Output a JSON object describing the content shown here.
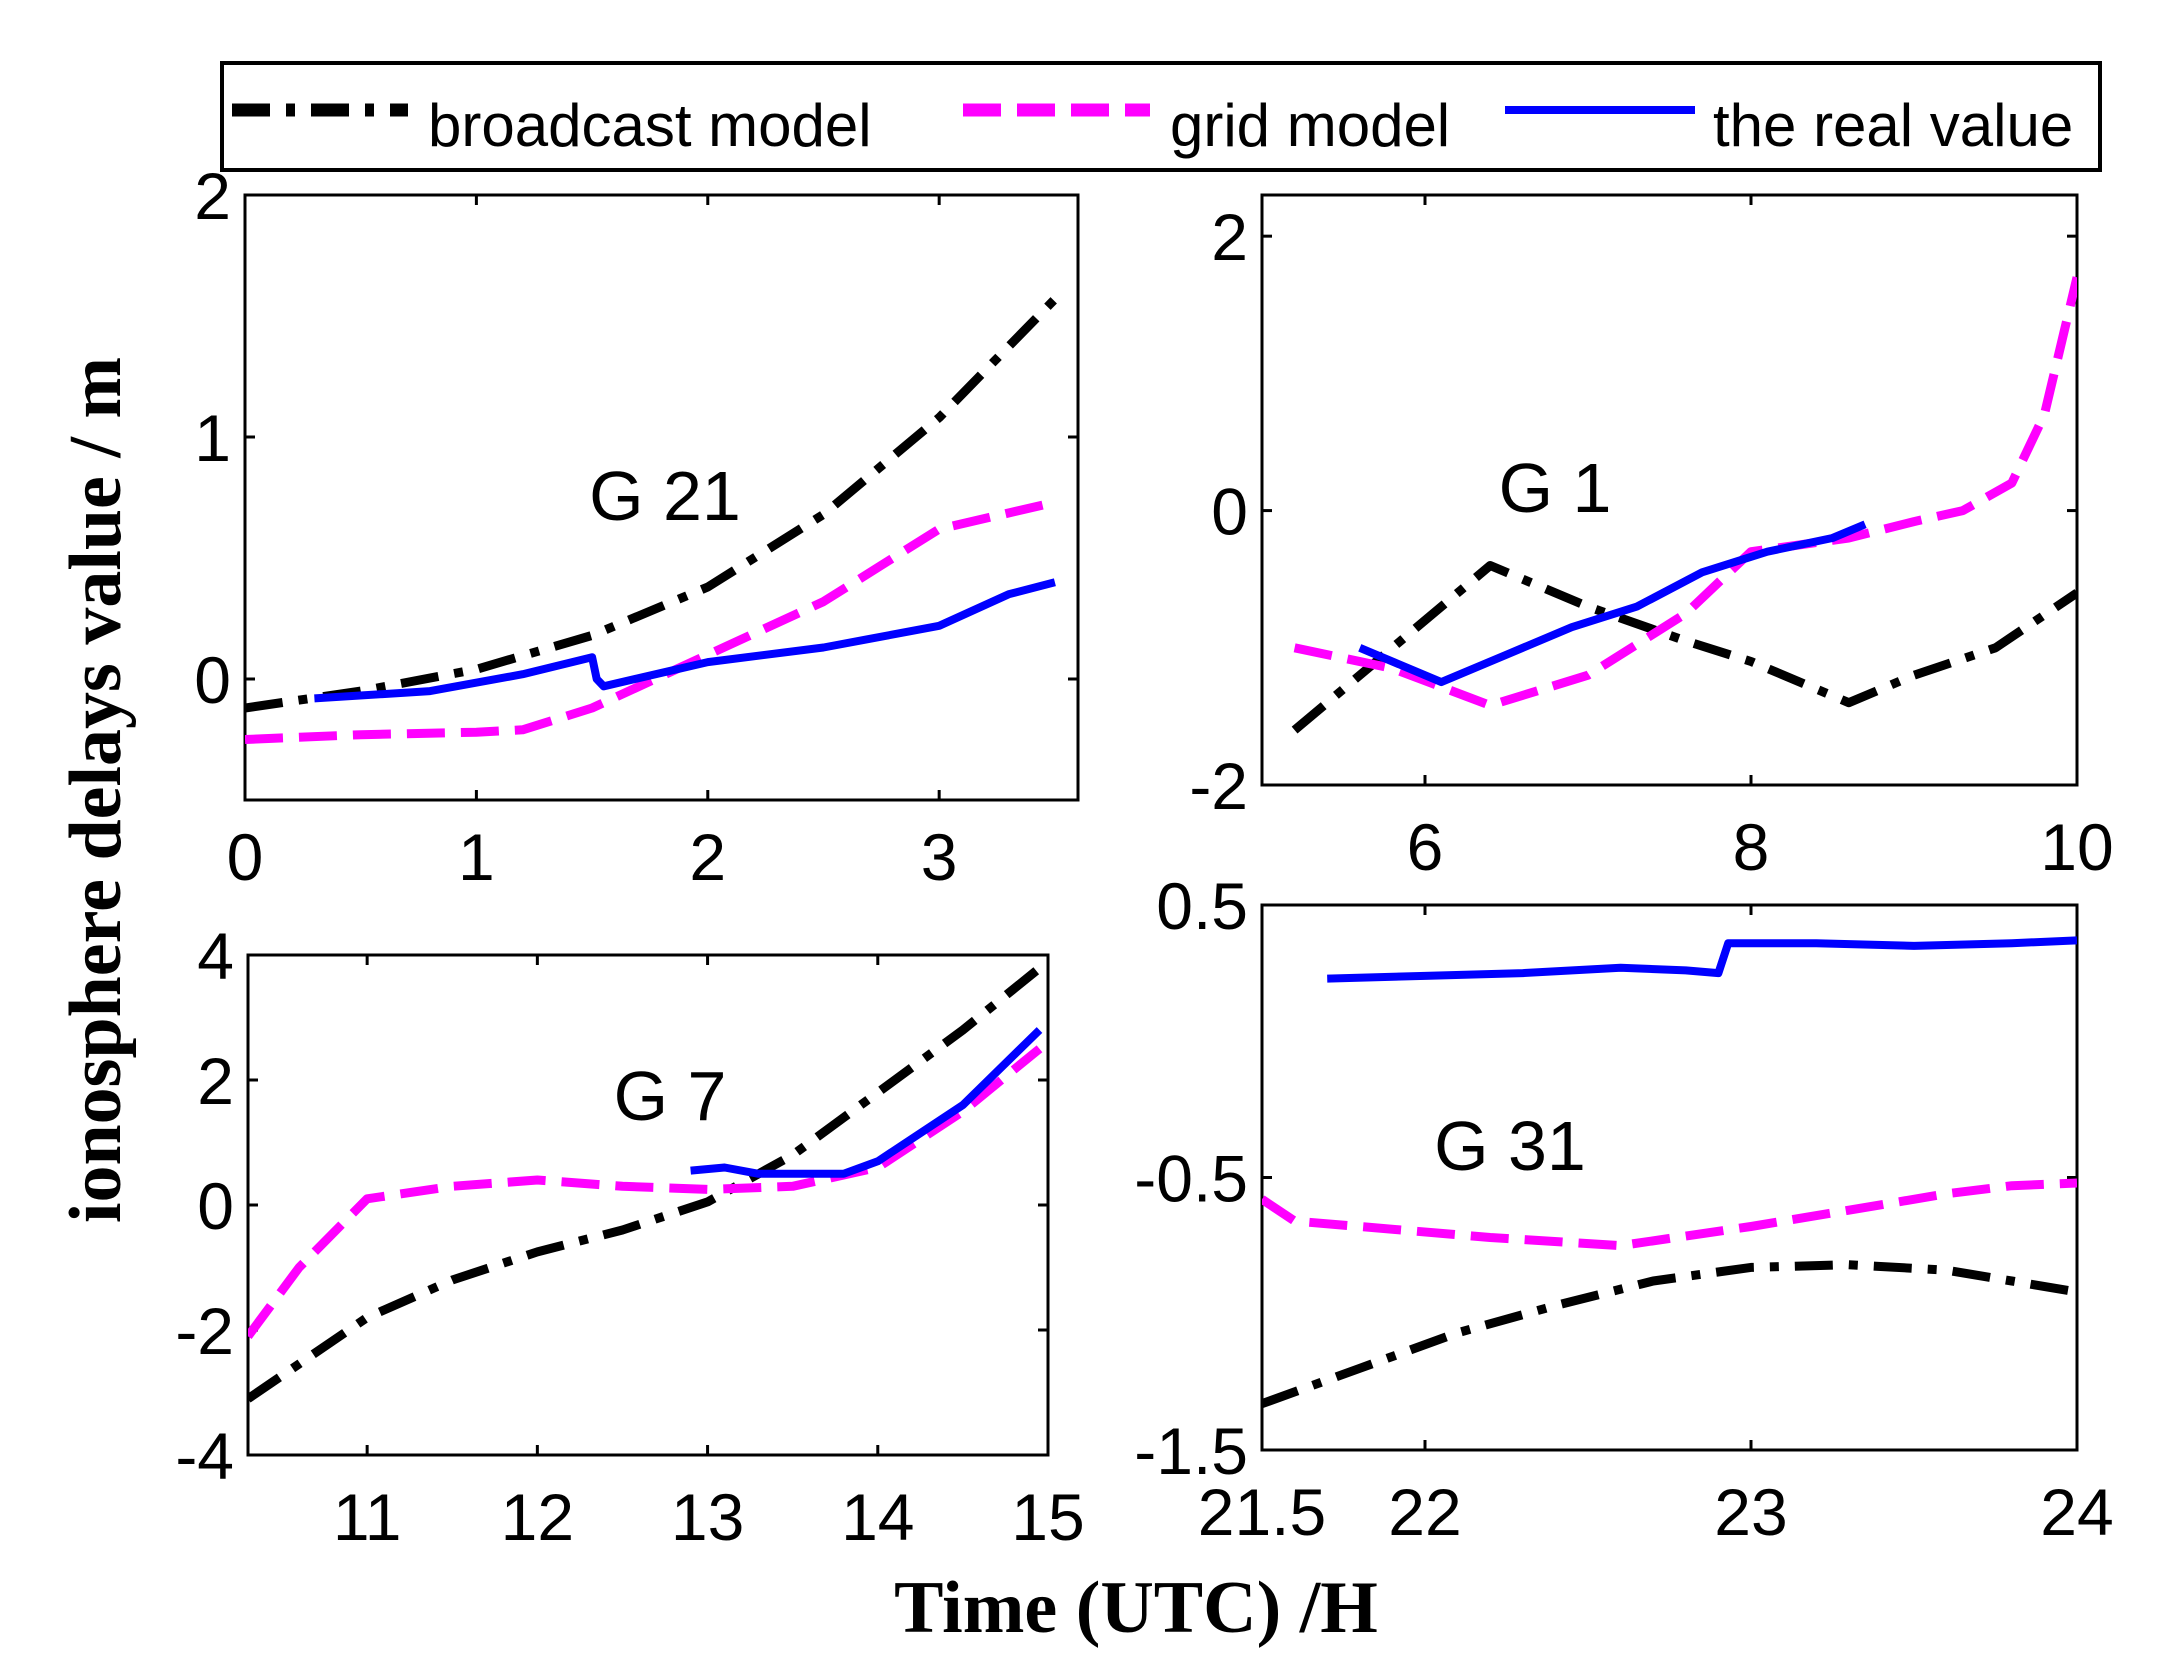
{
  "figure": {
    "ylabel": "ionosphere delays value / m",
    "xlabel": "Time (UTC) /H"
  },
  "legend": {
    "items": [
      {
        "label": "broadcast model",
        "color": "#000000",
        "style": "dashdot"
      },
      {
        "label": "grid model",
        "color": "#ff00ff",
        "style": "dashed"
      },
      {
        "label": "the real value",
        "color": "#0000ff",
        "style": "solid"
      }
    ]
  },
  "chart_data": [
    {
      "type": "line",
      "title": "G 21",
      "xlim": [
        0,
        3.6
      ],
      "ylim": [
        -0.5,
        2
      ],
      "xticks": [
        0,
        1,
        2,
        3
      ],
      "xtick_labels": [
        "0",
        "1",
        "2",
        "3"
      ],
      "yticks": [
        0,
        1,
        2
      ],
      "ytick_labels": [
        "0",
        "1",
        "2"
      ],
      "series": [
        {
          "name": "broadcast model",
          "color": "#000000",
          "style": "dashdot",
          "x": [
            0,
            0.5,
            1.0,
            1.5,
            2.0,
            2.5,
            3.0,
            3.5
          ],
          "y": [
            -0.12,
            -0.05,
            0.04,
            0.18,
            0.38,
            0.68,
            1.08,
            1.57
          ]
        },
        {
          "name": "grid model",
          "color": "#ff00ff",
          "style": "dashed",
          "x": [
            0,
            0.5,
            1.0,
            1.2,
            1.5,
            2.0,
            2.5,
            3.0,
            3.5
          ],
          "y": [
            -0.25,
            -0.23,
            -0.22,
            -0.21,
            -0.12,
            0.1,
            0.32,
            0.62,
            0.73
          ]
        },
        {
          "name": "the real value",
          "color": "#0000ff",
          "style": "solid",
          "x": [
            0.3,
            0.8,
            1.2,
            1.5,
            1.52,
            1.55,
            2.0,
            2.5,
            3.0,
            3.3,
            3.5
          ],
          "y": [
            -0.08,
            -0.05,
            0.02,
            0.09,
            0.0,
            -0.03,
            0.07,
            0.13,
            0.22,
            0.35,
            0.4
          ]
        }
      ]
    },
    {
      "type": "line",
      "title": "G 1",
      "xlim": [
        5,
        10
      ],
      "ylim": [
        -2,
        2.3
      ],
      "xticks": [
        6,
        8,
        10
      ],
      "xtick_labels": [
        "6",
        "8",
        "10"
      ],
      "yticks": [
        -2,
        0,
        2
      ],
      "ytick_labels": [
        "-2",
        "0",
        "2"
      ],
      "series": [
        {
          "name": "broadcast model",
          "color": "#000000",
          "style": "dashdot",
          "x": [
            5.2,
            6.4,
            7.0,
            7.6,
            8.0,
            8.6,
            9.0,
            9.5,
            10.0
          ],
          "y": [
            -1.6,
            -0.4,
            -0.7,
            -0.95,
            -1.1,
            -1.4,
            -1.2,
            -1.0,
            -0.6
          ]
        },
        {
          "name": "grid model",
          "color": "#ff00ff",
          "style": "dashed",
          "x": [
            5.2,
            5.8,
            6.4,
            7.0,
            7.6,
            8.0,
            8.6,
            9.0,
            9.3,
            9.6,
            9.8,
            10.0
          ],
          "y": [
            -1.0,
            -1.15,
            -1.42,
            -1.2,
            -0.75,
            -0.3,
            -0.2,
            -0.08,
            0.0,
            0.2,
            0.7,
            1.7
          ]
        },
        {
          "name": "the real value",
          "color": "#0000ff",
          "style": "solid",
          "x": [
            5.6,
            6.1,
            6.5,
            6.9,
            7.3,
            7.7,
            8.1,
            8.5,
            8.7
          ],
          "y": [
            -1.0,
            -1.25,
            -1.05,
            -0.85,
            -0.7,
            -0.45,
            -0.3,
            -0.2,
            -0.1
          ]
        }
      ]
    },
    {
      "type": "line",
      "title": "G 7",
      "xlim": [
        10.3,
        15
      ],
      "ylim": [
        -4,
        4
      ],
      "xticks": [
        11,
        12,
        13,
        14,
        15
      ],
      "xtick_labels": [
        "11",
        "12",
        "13",
        "14",
        "15"
      ],
      "yticks": [
        -4,
        -2,
        0,
        2,
        4
      ],
      "ytick_labels": [
        "-4",
        "-2",
        "0",
        "2",
        "4"
      ],
      "series": [
        {
          "name": "broadcast model",
          "color": "#000000",
          "style": "dashdot",
          "x": [
            10.3,
            11.0,
            11.5,
            12.0,
            12.5,
            13.0,
            13.5,
            14.0,
            14.5,
            15.0
          ],
          "y": [
            -3.1,
            -1.8,
            -1.2,
            -0.75,
            -0.4,
            0.05,
            0.8,
            1.8,
            2.8,
            3.9
          ]
        },
        {
          "name": "grid model",
          "color": "#ff00ff",
          "style": "dashed",
          "x": [
            10.3,
            10.6,
            11.0,
            11.5,
            12.0,
            12.5,
            13.0,
            13.5,
            14.0,
            14.5,
            14.95
          ],
          "y": [
            -2.1,
            -1.0,
            0.1,
            0.3,
            0.4,
            0.3,
            0.25,
            0.3,
            0.6,
            1.5,
            2.5
          ]
        },
        {
          "name": "the real value",
          "color": "#0000ff",
          "style": "solid",
          "x": [
            12.9,
            13.1,
            13.3,
            13.8,
            14.0,
            14.5,
            14.95
          ],
          "y": [
            0.55,
            0.6,
            0.5,
            0.5,
            0.7,
            1.6,
            2.8
          ]
        }
      ]
    },
    {
      "type": "line",
      "title": "G 31",
      "xlim": [
        21.5,
        24
      ],
      "ylim": [
        -1.5,
        0.5
      ],
      "xticks": [
        21.5,
        22,
        23,
        24
      ],
      "xtick_labels": [
        "21.5",
        "22",
        "23",
        "24"
      ],
      "yticks": [
        -1.5,
        -0.5,
        0.5
      ],
      "ytick_labels": [
        "-1.5",
        "-0.5",
        "0.5"
      ],
      "series": [
        {
          "name": "broadcast model",
          "color": "#000000",
          "style": "dashdot",
          "x": [
            21.5,
            21.8,
            22.1,
            22.4,
            22.7,
            23.0,
            23.3,
            23.6,
            23.8,
            24.0
          ],
          "y": [
            -1.33,
            -1.2,
            -1.07,
            -0.97,
            -0.88,
            -0.83,
            -0.82,
            -0.84,
            -0.88,
            -0.92
          ]
        },
        {
          "name": "grid model",
          "color": "#ff00ff",
          "style": "dashed",
          "x": [
            21.5,
            21.6,
            21.8,
            22.2,
            22.6,
            23.0,
            23.3,
            23.6,
            23.8,
            24.0
          ],
          "y": [
            -0.58,
            -0.66,
            -0.68,
            -0.72,
            -0.75,
            -0.68,
            -0.62,
            -0.56,
            -0.53,
            -0.52
          ]
        },
        {
          "name": "the real value",
          "color": "#0000ff",
          "style": "solid",
          "x": [
            21.7,
            22.0,
            22.3,
            22.6,
            22.8,
            22.9,
            22.93,
            23.2,
            23.5,
            23.8,
            24.0
          ],
          "y": [
            0.23,
            0.24,
            0.25,
            0.27,
            0.26,
            0.25,
            0.36,
            0.36,
            0.35,
            0.36,
            0.37
          ]
        }
      ]
    }
  ]
}
